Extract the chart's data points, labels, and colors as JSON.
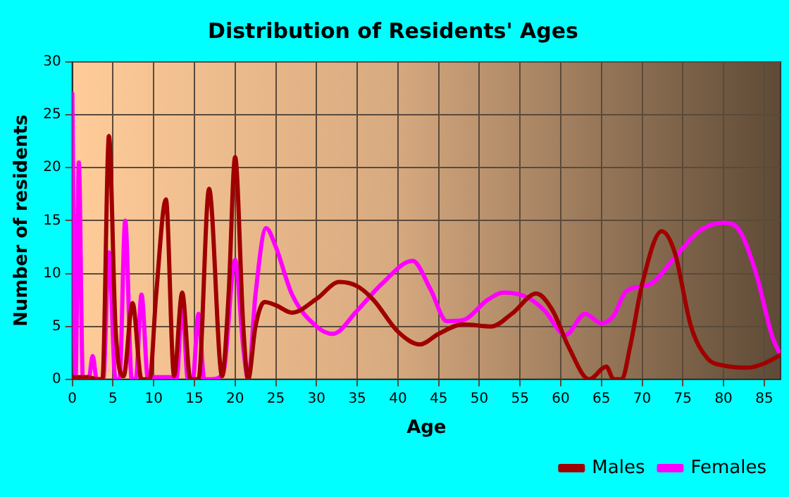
{
  "chart_data": {
    "type": "line",
    "title": "Distribution of Residents' Ages",
    "xlabel": "Age",
    "ylabel": "Number of residents",
    "xlim": [
      0,
      87
    ],
    "xticks": [
      0,
      5,
      10,
      15,
      20,
      25,
      30,
      35,
      40,
      45,
      50,
      55,
      60,
      65,
      70,
      75,
      80,
      85
    ],
    "ylim": [
      0,
      30
    ],
    "yticks": [
      0,
      5,
      10,
      15,
      20,
      25,
      30
    ],
    "grid": true,
    "legend": "bottom right",
    "marker": "none",
    "series": [
      {
        "name": "Males",
        "color": "#a00000",
        "x": [
          0,
          1,
          2,
          3,
          3.7,
          4.5,
          5.3,
          6.3,
          7.4,
          8.5,
          9.5,
          10.3,
          11.5,
          12.5,
          13.5,
          14.5,
          15.5,
          16.8,
          18.4,
          19.2,
          20,
          21,
          21.6,
          22.5,
          23.6,
          25,
          27,
          30,
          32.8,
          35,
          37,
          40,
          42.7,
          45,
          48,
          51.5,
          54,
          57,
          59,
          61,
          63.5,
          65.6,
          66.5,
          67.5,
          68.5,
          70,
          72.4,
          74,
          76,
          78,
          80,
          83,
          85,
          87
        ],
        "values": [
          0.2,
          0.2,
          0.2,
          0,
          0,
          23,
          5,
          0.3,
          7.2,
          0,
          0,
          8,
          17,
          0.3,
          8.2,
          0,
          0,
          18,
          0.3,
          8,
          21,
          5,
          0,
          5,
          7.3,
          7,
          6.3,
          7.6,
          9.2,
          8.8,
          7.5,
          4.5,
          3.3,
          4.3,
          5.2,
          5.0,
          6.2,
          8.1,
          6.5,
          3,
          0,
          1.2,
          0,
          0,
          3,
          9,
          14,
          12,
          5,
          2,
          1.3,
          1.1,
          1.5,
          2.3
        ]
      },
      {
        "name": "Females",
        "color": "#ff00ff",
        "x": [
          0,
          0.4,
          0.8,
          1.3,
          2,
          2.5,
          3,
          3.8,
          4.5,
          5.3,
          5.8,
          6.5,
          7.3,
          7.8,
          8.5,
          9.3,
          10,
          12,
          12.8,
          13.5,
          14.2,
          14.8,
          15.5,
          16.2,
          17,
          18.5,
          20,
          21,
          21.6,
          22.5,
          23.8,
          25,
          27,
          30,
          32,
          35,
          38,
          41.8,
          44,
          46,
          48,
          51,
          53,
          56,
          58,
          60.6,
          63,
          65,
          66.5,
          68,
          71,
          74,
          77,
          80,
          82,
          84,
          86,
          87
        ],
        "values": [
          27,
          0,
          20.5,
          0,
          0,
          2.2,
          0,
          0,
          12,
          0,
          0,
          15,
          0,
          0,
          8,
          0,
          0.2,
          0.2,
          0,
          7,
          0,
          0,
          6.2,
          0,
          0,
          0.5,
          11.3,
          3,
          0,
          8,
          14.3,
          12.5,
          8,
          5,
          4.3,
          6.5,
          9,
          11.2,
          8.5,
          5.5,
          5.6,
          7.5,
          8.2,
          7.7,
          6.5,
          4.2,
          6.2,
          5.3,
          6,
          8.3,
          9,
          11.5,
          14,
          14.8,
          14,
          10,
          4,
          2.3
        ]
      }
    ]
  }
}
